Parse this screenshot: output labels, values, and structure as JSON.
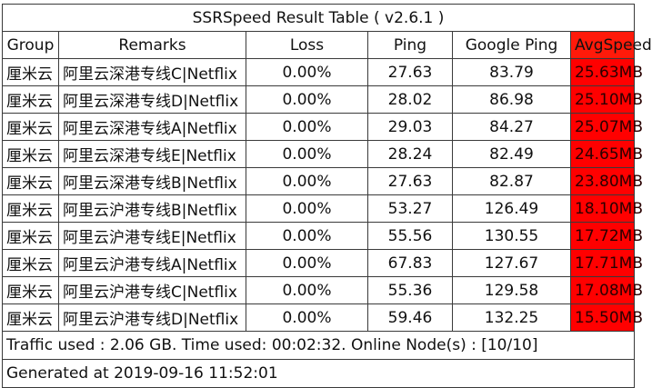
{
  "title": "SSRSpeed Result Table ( v2.6.1 )",
  "headers": [
    "Group",
    "Remarks",
    "Loss",
    "Ping",
    "Google Ping",
    "AvgSpeed"
  ],
  "rows": [
    {
      "group": "厘米云",
      "remarks": "阿里云深港专线C|Netflix",
      "loss": "0.00%",
      "ping": "27.63",
      "google_ping": "83.79",
      "avg_speed": "25.63MB",
      "color": "#ff0000"
    },
    {
      "group": "厘米云",
      "remarks": "阿里云深港专线D|Netflix",
      "loss": "0.00%",
      "ping": "28.02",
      "google_ping": "86.98",
      "avg_speed": "25.10MB",
      "color": "#ff0000"
    },
    {
      "group": "厘米云",
      "remarks": "阿里云深港专线A|Netflix",
      "loss": "0.00%",
      "ping": "29.03",
      "google_ping": "84.27",
      "avg_speed": "25.07MB",
      "color": "#ff0000"
    },
    {
      "group": "厘米云",
      "remarks": "阿里云深港专线E|Netflix",
      "loss": "0.00%",
      "ping": "28.24",
      "google_ping": "82.49",
      "avg_speed": "24.65MB",
      "color": "#ff0000"
    },
    {
      "group": "厘米云",
      "remarks": "阿里云深港专线B|Netflix",
      "loss": "0.00%",
      "ping": "27.63",
      "google_ping": "82.87",
      "avg_speed": "23.80MB",
      "color": "#ff0000"
    },
    {
      "group": "厘米云",
      "remarks": "阿里云沪港专线B|Netflix",
      "loss": "0.00%",
      "ping": "53.27",
      "google_ping": "126.49",
      "avg_speed": "18.10MB",
      "color": "#ff0000"
    },
    {
      "group": "厘米云",
      "remarks": "阿里云沪港专线E|Netflix",
      "loss": "0.00%",
      "ping": "55.56",
      "google_ping": "130.55",
      "avg_speed": "17.72MB",
      "color": "#ff0000"
    },
    {
      "group": "厘米云",
      "remarks": "阿里云沪港专线A|Netflix",
      "loss": "0.00%",
      "ping": "67.83",
      "google_ping": "127.67",
      "avg_speed": "17.71MB",
      "color": "#ff0000"
    },
    {
      "group": "厘米云",
      "remarks": "阿里云沪港专线C|Netflix",
      "loss": "0.00%",
      "ping": "55.36",
      "google_ping": "129.58",
      "avg_speed": "17.08MB",
      "color": "#ff0000"
    },
    {
      "group": "厘米云",
      "remarks": "阿里云沪港专线D|Netflix",
      "loss": "0.00%",
      "ping": "59.46",
      "google_ping": "132.25",
      "avg_speed": "15.50MB",
      "color": "#ff0000"
    }
  ],
  "footer": {
    "traffic": "Traffic used : 2.06 GB. Time used: 00:02:32. Online Node(s) : [10/10]",
    "generated": "Generated at 2019-09-16 11:52:01"
  },
  "colors": {
    "speed_fill": "#ff0000",
    "header_avg_fill": "#ff1a0a",
    "border": "#3a3a3a"
  }
}
